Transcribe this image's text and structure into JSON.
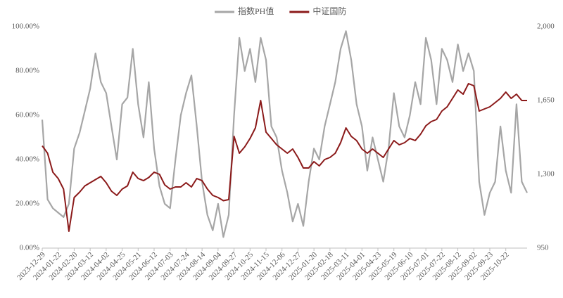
{
  "chart_data": {
    "type": "line",
    "categories": [
      "2023-12-29",
      null,
      null,
      "2024-01-22",
      null,
      null,
      "2024-02-20",
      null,
      null,
      "2024-03-12",
      null,
      null,
      "2024-04-02",
      null,
      null,
      "2024-04-25",
      null,
      null,
      "2024-05-21",
      null,
      null,
      "2024-06-12",
      null,
      null,
      "2024-07-03",
      null,
      null,
      "2024-07-24",
      null,
      null,
      "2024-08-14",
      null,
      null,
      "2024-09-04",
      null,
      null,
      "2024-09-27",
      null,
      null,
      "2024-10-25",
      null,
      null,
      "2024-11-15",
      null,
      null,
      "2024-12-06",
      null,
      null,
      "2024-12-27",
      null,
      null,
      "2025-01-20",
      null,
      null,
      "2025-02-18",
      null,
      null,
      "2025-03-11",
      null,
      null,
      "2025-04-01",
      null,
      null,
      "2025-04-23",
      null,
      null,
      "2025-05-19",
      null,
      null,
      "2025-06-10",
      null,
      null,
      "2025-07-01",
      null,
      null,
      "2025-07-22",
      null,
      null,
      "2025-08-12",
      null,
      null,
      "2025-09-02",
      null,
      null,
      "2025-09-23",
      null,
      null,
      "2025-10-22",
      null,
      null,
      null,
      null
    ],
    "series": [
      {
        "name": "指数PH值",
        "color": "#a6a6a6",
        "axis": "y",
        "values": [
          58,
          22,
          18,
          16,
          14,
          20,
          45,
          52,
          62,
          72,
          88,
          75,
          70,
          55,
          40,
          65,
          68,
          90,
          65,
          50,
          75,
          45,
          28,
          20,
          18,
          40,
          60,
          70,
          78,
          55,
          30,
          15,
          8,
          20,
          5,
          15,
          60,
          95,
          80,
          90,
          75,
          95,
          85,
          55,
          50,
          35,
          25,
          12,
          20,
          10,
          30,
          45,
          40,
          55,
          65,
          75,
          90,
          98,
          85,
          65,
          55,
          35,
          50,
          40,
          30,
          45,
          70,
          55,
          50,
          60,
          75,
          65,
          95,
          85,
          65,
          90,
          85,
          75,
          92,
          80,
          88,
          80,
          30,
          15,
          25,
          30,
          55,
          35,
          25,
          65,
          30,
          25
        ]
      },
      {
        "name": "中证国防",
        "color": "#8b1a1a",
        "axis": "y2",
        "values": [
          1435,
          1400,
          1310,
          1280,
          1230,
          1030,
          1190,
          1215,
          1245,
          1260,
          1275,
          1290,
          1260,
          1220,
          1200,
          1230,
          1245,
          1310,
          1280,
          1270,
          1285,
          1310,
          1300,
          1250,
          1230,
          1240,
          1240,
          1260,
          1240,
          1280,
          1270,
          1230,
          1200,
          1190,
          1175,
          1180,
          1480,
          1400,
          1430,
          1470,
          1520,
          1650,
          1500,
          1470,
          1440,
          1420,
          1400,
          1420,
          1380,
          1330,
          1330,
          1360,
          1340,
          1370,
          1380,
          1400,
          1450,
          1520,
          1480,
          1460,
          1420,
          1400,
          1420,
          1400,
          1380,
          1420,
          1460,
          1440,
          1450,
          1470,
          1460,
          1490,
          1530,
          1550,
          1560,
          1600,
          1620,
          1660,
          1700,
          1680,
          1730,
          1720,
          1600,
          1610,
          1620,
          1640,
          1660,
          1690,
          1660,
          1680,
          1650,
          1650
        ]
      }
    ],
    "ylim": [
      0,
      100
    ],
    "yticks": [
      {
        "value": 0,
        "label": "0.00%"
      },
      {
        "value": 20,
        "label": "20.00%"
      },
      {
        "value": 40,
        "label": "40.00%"
      },
      {
        "value": 60,
        "label": "60.00%"
      },
      {
        "value": 80,
        "label": "80.00%"
      },
      {
        "value": 100,
        "label": "100.00%"
      }
    ],
    "y2lim": [
      950,
      2000
    ],
    "y2ticks": [
      950,
      {
        "value": 1300,
        "label": "1,300"
      },
      {
        "value": 1650,
        "label": "1,650"
      },
      {
        "value": 2000,
        "label": "2,000"
      }
    ],
    "legend": "top"
  }
}
